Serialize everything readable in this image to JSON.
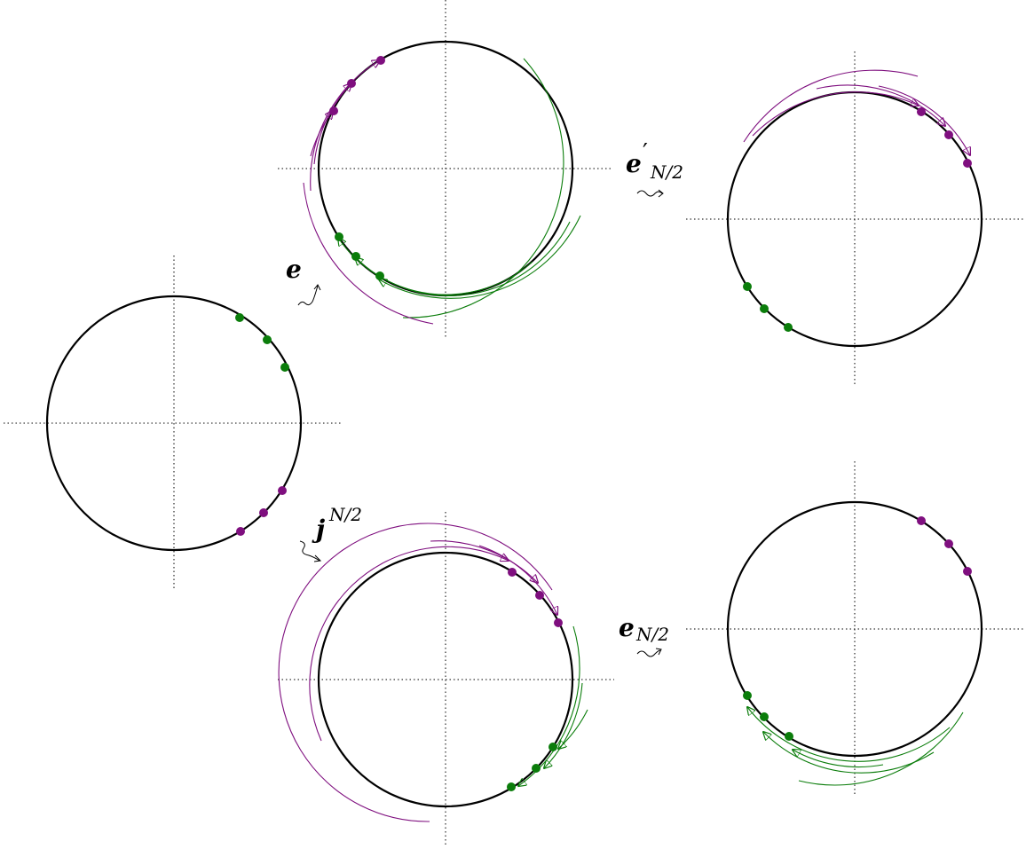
{
  "colors": {
    "circle": "#000000",
    "axis": "#000000",
    "green": "#0b7d0b",
    "purple": "#7f0f7f",
    "background": "#ffffff"
  },
  "labels": {
    "e": "e",
    "e_prime_base": "e",
    "e_prime_mark": "′",
    "e_prime_sub": "N/2",
    "j_base": "j",
    "j_sup": "N/2",
    "e_half_base": "e",
    "e_half_sub": "N/2"
  },
  "arrow_glyphs": {
    "squiggle": "squiggly-arrow-icon"
  }
}
